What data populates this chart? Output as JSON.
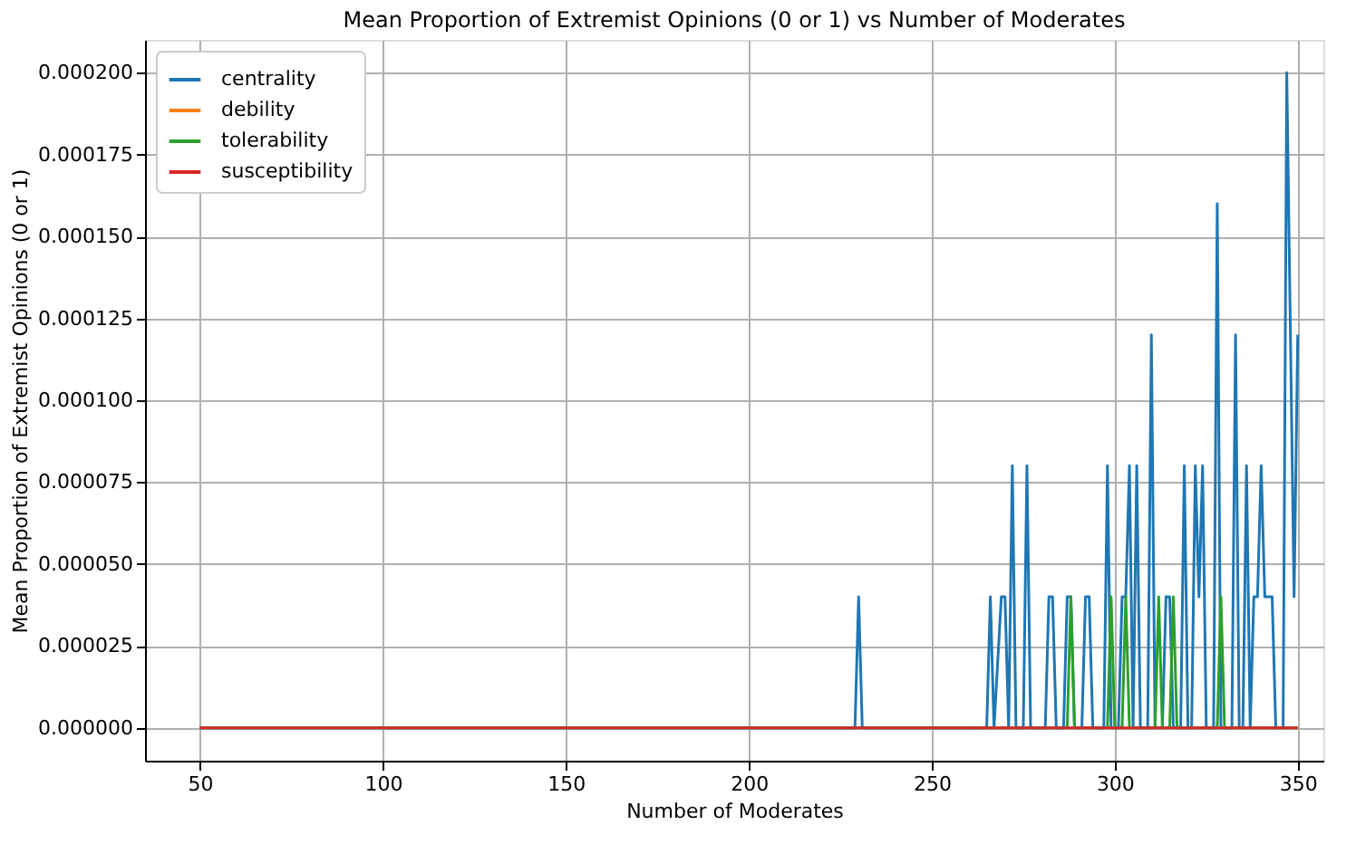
{
  "chart_data": {
    "type": "line",
    "title": "Mean Proportion of Extremist Opinions (0 or 1) vs Number of Moderates",
    "xlabel": "Number of Moderates",
    "ylabel": "Mean Proportion of Extremist Opinions (0 or 1)",
    "xlim": [
      35,
      357
    ],
    "xticks": [
      50,
      100,
      150,
      200,
      250,
      300,
      350
    ],
    "ylim": [
      -1e-05,
      0.00021
    ],
    "yticks": [
      {
        "value": 0,
        "label": "0.000000"
      },
      {
        "value": 2.5e-05,
        "label": "0.000025"
      },
      {
        "value": 5e-05,
        "label": "0.000050"
      },
      {
        "value": 7.5e-05,
        "label": "0.000075"
      },
      {
        "value": 0.0001,
        "label": "0.000100"
      },
      {
        "value": 0.000125,
        "label": "0.000125"
      },
      {
        "value": 0.00015,
        "label": "0.000150"
      },
      {
        "value": 0.000175,
        "label": "0.000175"
      },
      {
        "value": 0.0002,
        "label": "0.000200"
      }
    ],
    "grid": true,
    "legend": "top left",
    "marker": "none",
    "line_style": "solid",
    "series": [
      {
        "name": "centrality",
        "color": "#1f77b4",
        "x": [
          50,
          229,
          230,
          231,
          265,
          266,
          267,
          269,
          270,
          271,
          272,
          273,
          275,
          276,
          277,
          281,
          282,
          283,
          284,
          286,
          287,
          288,
          289,
          291,
          292,
          293,
          294,
          297,
          298,
          299,
          301,
          302,
          303,
          304,
          305,
          306,
          307,
          309,
          310,
          311,
          313,
          314,
          315,
          316,
          318,
          319,
          320,
          321,
          322,
          323,
          324,
          325,
          327,
          328,
          329,
          332,
          333,
          334,
          335,
          336,
          337,
          338,
          339,
          340,
          341,
          342,
          343,
          344,
          346,
          347,
          349,
          350
        ],
        "values": [
          0,
          0,
          4e-05,
          0,
          0,
          4e-05,
          0,
          4e-05,
          4e-05,
          0,
          8e-05,
          0,
          0,
          8e-05,
          0,
          0,
          4e-05,
          4e-05,
          0,
          0,
          4e-05,
          4e-05,
          0,
          0,
          4e-05,
          4e-05,
          0,
          0,
          8e-05,
          0,
          0,
          4e-05,
          4e-05,
          8e-05,
          0,
          8e-05,
          0,
          0,
          0.00012,
          0,
          0,
          4e-05,
          4e-05,
          0,
          0,
          8e-05,
          0,
          0,
          8e-05,
          4e-05,
          8e-05,
          0,
          0,
          0.00016,
          0,
          0,
          0.00012,
          0,
          0,
          8e-05,
          0,
          4e-05,
          4e-05,
          8e-05,
          4e-05,
          4e-05,
          4e-05,
          0,
          0,
          0.0002,
          4e-05,
          0.00012
        ]
      },
      {
        "name": "debility",
        "color": "#ff7f0e"
      },
      {
        "name": "tolerability",
        "color": "#2ca02c",
        "x": [
          50,
          287,
          288,
          289,
          298,
          299,
          300,
          302,
          303,
          304,
          311,
          312,
          313,
          315,
          316,
          317,
          328,
          329,
          330,
          350
        ],
        "values": [
          0,
          0,
          4e-05,
          0,
          0,
          4e-05,
          0,
          0,
          4e-05,
          0,
          0,
          4e-05,
          0,
          0,
          4e-05,
          0,
          0,
          4e-05,
          0,
          0
        ]
      },
      {
        "name": "susceptibility",
        "color": "#d62728",
        "x": [
          50,
          350
        ],
        "values": [
          0,
          0
        ]
      }
    ]
  }
}
